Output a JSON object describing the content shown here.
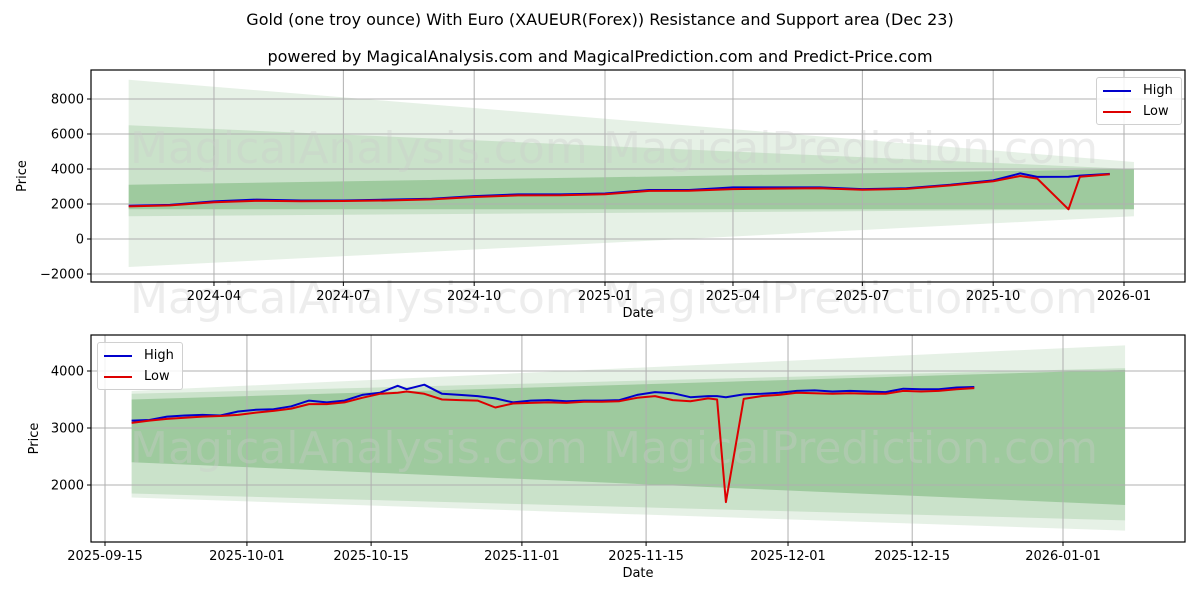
{
  "header": {
    "title": "Gold (one troy ounce) With Euro (XAUEUR(Forex)) Resistance and Support area (Dec 23)",
    "subtitle": "powered by MagicalAnalysis.com and MagicalPrediction.com and Predict-Price.com"
  },
  "watermarks": [
    "MagicalAnalysis.com",
    "MagicalPrediction.com"
  ],
  "colors": {
    "high": "#0000cc",
    "low": "#dd0000",
    "band": "#2e8b2e"
  },
  "legend": {
    "high": "High",
    "low": "Low"
  },
  "chart_data": [
    {
      "type": "line",
      "title": "Full history",
      "xlabel": "Date",
      "ylabel": "Price",
      "ylim": [
        -2200,
        9700
      ],
      "yticks": [
        "−2000",
        "0",
        "2000",
        "4000",
        "6000",
        "8000"
      ],
      "xticks": [
        "2024-04",
        "2024-07",
        "2024-10",
        "2025-01",
        "2025-04",
        "2025-07",
        "2025-10",
        "2026-01"
      ],
      "grid": true,
      "legend_position": "upper right",
      "x": [
        "2024-02-01",
        "2024-03-01",
        "2024-04-01",
        "2024-05-01",
        "2024-06-01",
        "2024-07-01",
        "2024-08-01",
        "2024-09-01",
        "2024-10-01",
        "2024-11-01",
        "2024-12-01",
        "2025-01-01",
        "2025-02-01",
        "2025-03-01",
        "2025-04-01",
        "2025-05-01",
        "2025-06-01",
        "2025-07-01",
        "2025-08-01",
        "2025-09-01",
        "2025-10-01",
        "2025-10-20",
        "2025-11-01",
        "2025-11-23",
        "2025-12-01",
        "2025-12-22"
      ],
      "series": [
        {
          "name": "High",
          "values": [
            1900,
            1950,
            2150,
            2250,
            2200,
            2200,
            2250,
            2300,
            2450,
            2550,
            2550,
            2600,
            2800,
            2800,
            2950,
            2950,
            2950,
            2850,
            2900,
            3100,
            3350,
            3750,
            3550,
            3560,
            3620,
            3720
          ]
        },
        {
          "name": "Low",
          "values": [
            1860,
            1920,
            2100,
            2180,
            2160,
            2170,
            2200,
            2260,
            2400,
            2490,
            2500,
            2560,
            2750,
            2760,
            2850,
            2880,
            2900,
            2810,
            2860,
            3060,
            3300,
            3600,
            3450,
            1700,
            3560,
            3700
          ]
        }
      ],
      "bands": [
        {
          "name": "outer",
          "start": "2024-02-01",
          "end": "2026-01-08",
          "upper_start": 9100,
          "upper_end": 4400,
          "lower_start": -1600,
          "lower_end": 1300
        },
        {
          "name": "middle",
          "start": "2024-02-01",
          "end": "2026-01-08",
          "upper_start": 6500,
          "upper_end": 4000,
          "lower_start": 1300,
          "lower_end": 1700
        },
        {
          "name": "inner",
          "start": "2024-02-01",
          "end": "2026-01-08",
          "upper_start": 3100,
          "upper_end": 4000,
          "lower_start": 1700,
          "lower_end": 1700
        }
      ]
    },
    {
      "type": "line",
      "title": "Recent (zoomed)",
      "xlabel": "Date",
      "ylabel": "Price",
      "ylim": [
        1000,
        4620
      ],
      "yticks": [
        "2000",
        "3000",
        "4000"
      ],
      "xticks": [
        "2025-09-15",
        "2025-10-01",
        "2025-10-15",
        "2025-11-01",
        "2025-11-15",
        "2025-12-01",
        "2025-12-15",
        "2026-01-01"
      ],
      "grid": true,
      "legend_position": "upper left",
      "x": [
        "09-18",
        "09-20",
        "09-22",
        "09-24",
        "09-26",
        "09-28",
        "09-30",
        "10-02",
        "10-04",
        "10-06",
        "10-08",
        "10-10",
        "10-12",
        "10-14",
        "10-16",
        "10-18",
        "10-19",
        "10-21",
        "10-23",
        "10-25",
        "10-27",
        "10-29",
        "10-31",
        "11-02",
        "11-04",
        "11-06",
        "11-08",
        "11-10",
        "11-12",
        "11-14",
        "11-16",
        "11-18",
        "11-20",
        "11-22",
        "11-23",
        "11-24",
        "11-26",
        "11-28",
        "11-30",
        "12-02",
        "12-04",
        "12-06",
        "12-08",
        "12-10",
        "12-12",
        "12-14",
        "12-16",
        "12-18",
        "12-20",
        "12-22"
      ],
      "series": [
        {
          "name": "High",
          "values": [
            3130,
            3140,
            3200,
            3220,
            3230,
            3220,
            3290,
            3320,
            3330,
            3380,
            3480,
            3450,
            3480,
            3580,
            3620,
            3740,
            3680,
            3760,
            3600,
            3580,
            3560,
            3520,
            3450,
            3480,
            3490,
            3470,
            3480,
            3480,
            3490,
            3580,
            3630,
            3610,
            3540,
            3560,
            3560,
            3540,
            3590,
            3600,
            3620,
            3650,
            3660,
            3640,
            3650,
            3640,
            3630,
            3690,
            3680,
            3680,
            3710,
            3720
          ]
        },
        {
          "name": "Low",
          "values": [
            3090,
            3130,
            3160,
            3180,
            3200,
            3210,
            3230,
            3270,
            3300,
            3340,
            3420,
            3420,
            3450,
            3530,
            3600,
            3620,
            3640,
            3600,
            3500,
            3490,
            3480,
            3360,
            3430,
            3440,
            3450,
            3440,
            3460,
            3460,
            3470,
            3530,
            3560,
            3490,
            3470,
            3520,
            3500,
            1700,
            3510,
            3560,
            3580,
            3620,
            3610,
            3600,
            3610,
            3600,
            3600,
            3650,
            3640,
            3650,
            3680,
            3700
          ]
        }
      ],
      "bands": [
        {
          "name": "outer",
          "start": "2025-09-18",
          "end": "2026-01-08",
          "upper_start": 3650,
          "upper_end": 4450,
          "lower_start": 1780,
          "lower_end": 1200
        },
        {
          "name": "middle",
          "start": "2025-09-18",
          "end": "2026-01-08",
          "upper_start": 3600,
          "upper_end": 4050,
          "lower_start": 1850,
          "lower_end": 1380
        },
        {
          "name": "inner",
          "start": "2025-09-18",
          "end": "2026-01-08",
          "upper_start": 3500,
          "upper_end": 4020,
          "lower_start": 2400,
          "lower_end": 1650
        }
      ]
    }
  ]
}
